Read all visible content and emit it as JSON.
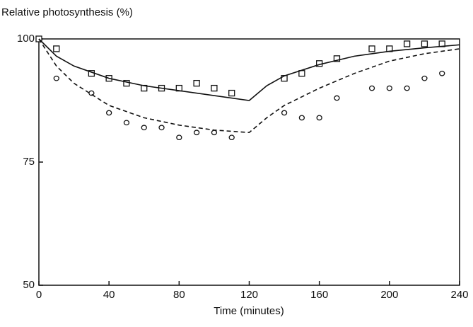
{
  "chart_data": {
    "type": "scatter",
    "y_label": "Relative photosynthesis (%)",
    "x_label": "Time (minutes)",
    "xlim": [
      0,
      240
    ],
    "xticks": [
      0,
      40,
      80,
      120,
      160,
      200,
      240
    ],
    "ylim": [
      50,
      100
    ],
    "yticks": [
      50,
      75,
      100
    ],
    "color": "#111111",
    "series": [
      {
        "marker": "square",
        "x": [
          0,
          10,
          30,
          40,
          50,
          60,
          70,
          80,
          90,
          100,
          110,
          140,
          150,
          160,
          170,
          190,
          200,
          210,
          220,
          230
        ],
        "values": [
          100,
          98,
          93,
          92,
          91,
          90,
          90,
          90,
          91,
          90,
          89,
          92,
          93,
          95,
          96,
          98,
          98,
          99,
          99,
          99
        ]
      },
      {
        "marker": "circle",
        "x": [
          10,
          30,
          40,
          50,
          60,
          70,
          80,
          90,
          100,
          110,
          140,
          150,
          160,
          170,
          190,
          200,
          210,
          220,
          230
        ],
        "values": [
          92,
          89,
          85,
          83,
          82,
          82,
          80,
          81,
          81,
          80,
          85,
          84,
          84,
          88,
          90,
          90,
          90,
          92,
          93
        ]
      },
      {
        "line": "solid",
        "x": [
          0,
          10,
          20,
          40,
          60,
          80,
          100,
          120,
          130,
          140,
          160,
          180,
          200,
          220,
          240
        ],
        "values": [
          100,
          96.5,
          94.5,
          92,
          90.5,
          89.5,
          88.5,
          87.5,
          90.5,
          92.5,
          94.8,
          96.5,
          97.5,
          98.2,
          98.8
        ]
      },
      {
        "line": "dashed",
        "x": [
          0,
          10,
          20,
          40,
          60,
          80,
          100,
          120,
          130,
          140,
          160,
          180,
          200,
          220,
          240
        ],
        "values": [
          100,
          94.5,
          91,
          86.5,
          84,
          82.5,
          81.5,
          81,
          84,
          86.5,
          90,
          93,
          95.5,
          97,
          98
        ]
      }
    ]
  }
}
